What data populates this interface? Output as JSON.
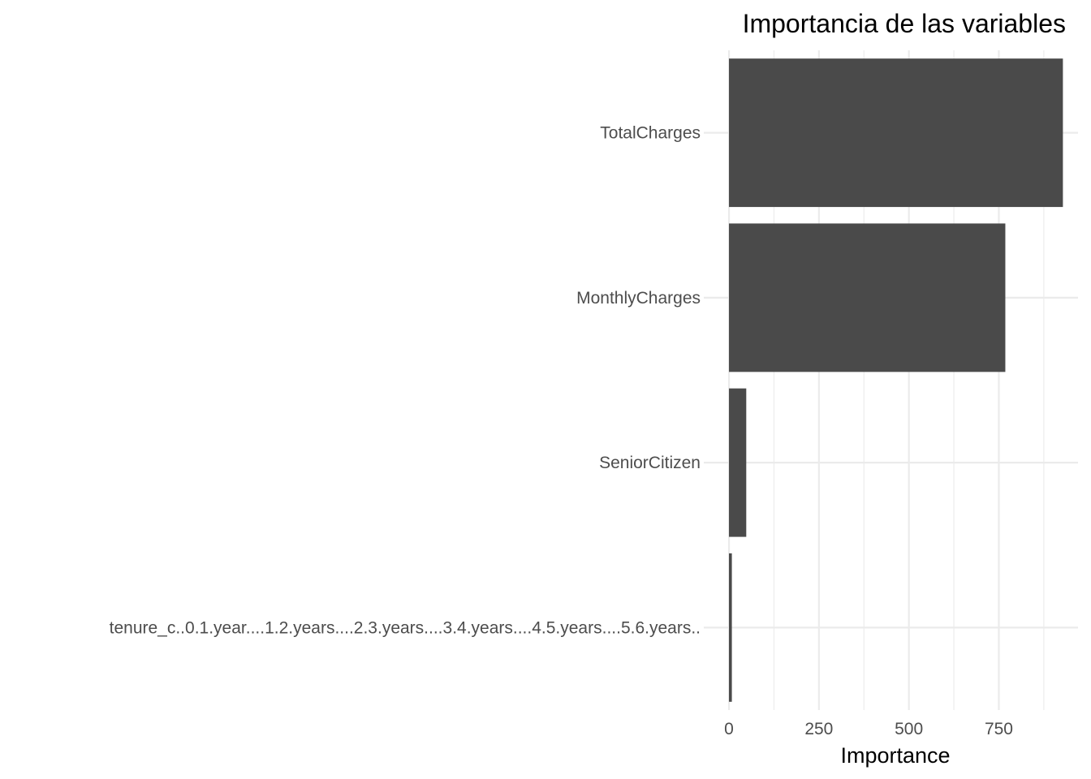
{
  "chart_data": {
    "type": "bar",
    "orientation": "horizontal",
    "title": "Importancia de las variables",
    "xlabel": "Importance",
    "ylabel": "",
    "categories": [
      "TotalCharges",
      "MonthlyCharges",
      "SeniorCitizen",
      "tenure_c..0.1.year....1.2.years....2.3.years....3.4.years....4.5.years....5.6.years.."
    ],
    "values": [
      928,
      768,
      48,
      8
    ],
    "xlim": [
      -70,
      970
    ],
    "x_ticks": [
      0,
      250,
      500,
      750
    ],
    "x_tick_labels": [
      "0",
      "250",
      "500",
      "750"
    ],
    "grid": true,
    "legend": "none",
    "colors": {
      "bar": "#4a4a4a",
      "grid": "#ebebeb",
      "tick_text": "#4d4d4d",
      "title_text": "#000000"
    }
  }
}
